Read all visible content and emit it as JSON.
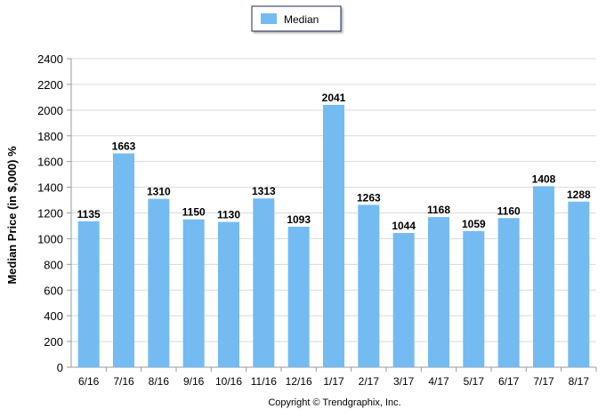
{
  "chart_data": {
    "type": "bar",
    "categories": [
      "6/16",
      "7/16",
      "8/16",
      "9/16",
      "10/16",
      "11/16",
      "12/16",
      "1/17",
      "2/17",
      "3/17",
      "4/17",
      "5/17",
      "6/17",
      "7/17",
      "8/17"
    ],
    "series": [
      {
        "name": "Median",
        "values": [
          1135,
          1663,
          1310,
          1150,
          1130,
          1313,
          1093,
          2041,
          1263,
          1044,
          1168,
          1059,
          1160,
          1408,
          1288
        ]
      }
    ],
    "ylabel": "Median Price (in $,000) %",
    "xlabel": "",
    "ylim": [
      0,
      2400
    ],
    "yticks": [
      0,
      200,
      400,
      600,
      800,
      1000,
      1200,
      1400,
      1600,
      1800,
      2000,
      2200,
      2400
    ],
    "grid": true,
    "legend_position": "top-center",
    "bar_color": "#74bbf2",
    "data_labels": true
  },
  "footer": {
    "copyright": "Copyright © Trendgraphix, Inc."
  }
}
